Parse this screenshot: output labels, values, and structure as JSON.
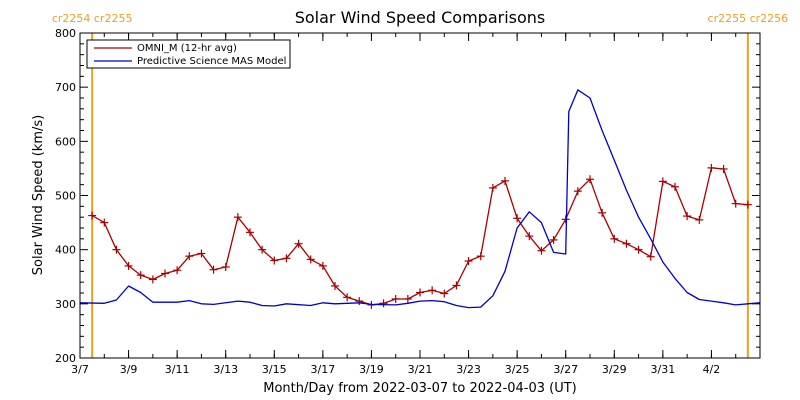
{
  "chart_data": {
    "type": "line",
    "title": "Solar Wind Speed Comparisons",
    "xlabel": "Month/Day from 2022-03-07 to 2022-04-03 (UT)",
    "ylabel": "Solar Wind Speed (km/s)",
    "xlim": [
      "2022-03-07",
      "2022-04-04"
    ],
    "ylim": [
      200,
      800
    ],
    "y_ticks": [
      200,
      300,
      400,
      500,
      600,
      700,
      800
    ],
    "x_ticks": [
      {
        "date": "2022-03-07",
        "label": "3/7"
      },
      {
        "date": "2022-03-09",
        "label": "3/9"
      },
      {
        "date": "2022-03-11",
        "label": "3/11"
      },
      {
        "date": "2022-03-13",
        "label": "3/13"
      },
      {
        "date": "2022-03-15",
        "label": "3/15"
      },
      {
        "date": "2022-03-17",
        "label": "3/17"
      },
      {
        "date": "2022-03-19",
        "label": "3/19"
      },
      {
        "date": "2022-03-21",
        "label": "3/21"
      },
      {
        "date": "2022-03-23",
        "label": "3/23"
      },
      {
        "date": "2022-03-25",
        "label": "3/25"
      },
      {
        "date": "2022-03-27",
        "label": "3/27"
      },
      {
        "date": "2022-03-29",
        "label": "3/29"
      },
      {
        "date": "2022-03-31",
        "label": "3/31"
      },
      {
        "date": "2022-04-02",
        "label": "4/2"
      }
    ],
    "legend_position": "top-left",
    "carrington_markers": [
      {
        "date": "2022-03-07 12:00",
        "label": "cr2254 cr2255",
        "side": "left"
      },
      {
        "date": "2022-04-03 12:00",
        "label": "cr2255 cr2256",
        "side": "right"
      }
    ],
    "series": [
      {
        "name": "OMNI_M (12-hr avg)",
        "color": "#aa0000",
        "marker": "plus",
        "points": [
          [
            "2022-03-07 12:00",
            463
          ],
          [
            "2022-03-08 00:00",
            450
          ],
          [
            "2022-03-08 12:00",
            400
          ],
          [
            "2022-03-09 00:00",
            370
          ],
          [
            "2022-03-09 12:00",
            353
          ],
          [
            "2022-03-10 00:00",
            345
          ],
          [
            "2022-03-10 12:00",
            356
          ],
          [
            "2022-03-11 00:00",
            362
          ],
          [
            "2022-03-11 12:00",
            388
          ],
          [
            "2022-03-12 00:00",
            393
          ],
          [
            "2022-03-12 12:00",
            363
          ],
          [
            "2022-03-13 00:00",
            368
          ],
          [
            "2022-03-13 12:00",
            460
          ],
          [
            "2022-03-14 00:00",
            432
          ],
          [
            "2022-03-14 12:00",
            400
          ],
          [
            "2022-03-15 00:00",
            380
          ],
          [
            "2022-03-15 12:00",
            384
          ],
          [
            "2022-03-16 00:00",
            411
          ],
          [
            "2022-03-16 12:00",
            382
          ],
          [
            "2022-03-17 00:00",
            370
          ],
          [
            "2022-03-17 12:00",
            333
          ],
          [
            "2022-03-18 00:00",
            312
          ],
          [
            "2022-03-18 12:00",
            305
          ],
          [
            "2022-03-19 00:00",
            298
          ],
          [
            "2022-03-19 12:00",
            301
          ],
          [
            "2022-03-20 00:00",
            309
          ],
          [
            "2022-03-20 12:00",
            309
          ],
          [
            "2022-03-21 00:00",
            321
          ],
          [
            "2022-03-21 12:00",
            325
          ],
          [
            "2022-03-22 00:00",
            319
          ],
          [
            "2022-03-22 12:00",
            334
          ],
          [
            "2022-03-23 00:00",
            379
          ],
          [
            "2022-03-23 12:00",
            388
          ],
          [
            "2022-03-24 00:00",
            514
          ],
          [
            "2022-03-24 12:00",
            527
          ],
          [
            "2022-03-25 00:00",
            458
          ],
          [
            "2022-03-25 12:00",
            425
          ],
          [
            "2022-03-26 00:00",
            398
          ],
          [
            "2022-03-26 12:00",
            418
          ],
          [
            "2022-03-27 00:00",
            456
          ],
          [
            "2022-03-27 12:00",
            508
          ],
          [
            "2022-03-28 00:00",
            530
          ],
          [
            "2022-03-28 12:00",
            468
          ],
          [
            "2022-03-29 00:00",
            420
          ],
          [
            "2022-03-29 12:00",
            411
          ],
          [
            "2022-03-30 00:00",
            400
          ],
          [
            "2022-03-30 12:00",
            387
          ],
          [
            "2022-03-31 00:00",
            526
          ],
          [
            "2022-03-31 12:00",
            516
          ],
          [
            "2022-04-01 00:00",
            462
          ],
          [
            "2022-04-01 12:00",
            455
          ],
          [
            "2022-04-02 00:00",
            551
          ],
          [
            "2022-04-02 12:00",
            549
          ],
          [
            "2022-04-03 00:00",
            485
          ],
          [
            "2022-04-03 12:00",
            483
          ]
        ]
      },
      {
        "name": "Predictive Science MAS Model",
        "color": "#0000cc",
        "marker": "none",
        "points": [
          [
            "2022-03-07 00:00",
            302
          ],
          [
            "2022-03-08 00:00",
            301
          ],
          [
            "2022-03-08 12:00",
            307
          ],
          [
            "2022-03-09 00:00",
            333
          ],
          [
            "2022-03-09 12:00",
            321
          ],
          [
            "2022-03-10 00:00",
            303
          ],
          [
            "2022-03-11 00:00",
            303
          ],
          [
            "2022-03-11 12:00",
            306
          ],
          [
            "2022-03-12 00:00",
            300
          ],
          [
            "2022-03-12 12:00",
            299
          ],
          [
            "2022-03-13 12:00",
            305
          ],
          [
            "2022-03-14 00:00",
            303
          ],
          [
            "2022-03-14 12:00",
            297
          ],
          [
            "2022-03-15 00:00",
            296
          ],
          [
            "2022-03-15 12:00",
            300
          ],
          [
            "2022-03-16 12:00",
            297
          ],
          [
            "2022-03-17 00:00",
            302
          ],
          [
            "2022-03-17 12:00",
            300
          ],
          [
            "2022-03-18 12:00",
            302
          ],
          [
            "2022-03-19 00:00",
            299
          ],
          [
            "2022-03-20 00:00",
            298
          ],
          [
            "2022-03-20 12:00",
            301
          ],
          [
            "2022-03-21 00:00",
            305
          ],
          [
            "2022-03-21 12:00",
            306
          ],
          [
            "2022-03-22 00:00",
            304
          ],
          [
            "2022-03-22 12:00",
            297
          ],
          [
            "2022-03-23 00:00",
            293
          ],
          [
            "2022-03-23 12:00",
            294
          ],
          [
            "2022-03-24 00:00",
            315
          ],
          [
            "2022-03-24 12:00",
            360
          ],
          [
            "2022-03-25 00:00",
            440
          ],
          [
            "2022-03-25 12:00",
            470
          ],
          [
            "2022-03-26 00:00",
            450
          ],
          [
            "2022-03-26 12:00",
            395
          ],
          [
            "2022-03-27 00:00",
            392
          ],
          [
            "2022-03-27 03:00",
            655
          ],
          [
            "2022-03-27 12:00",
            695
          ],
          [
            "2022-03-28 00:00",
            680
          ],
          [
            "2022-03-28 12:00",
            620
          ],
          [
            "2022-03-29 00:00",
            565
          ],
          [
            "2022-03-29 12:00",
            510
          ],
          [
            "2022-03-30 00:00",
            460
          ],
          [
            "2022-03-30 12:00",
            420
          ],
          [
            "2022-03-31 00:00",
            377
          ],
          [
            "2022-03-31 12:00",
            347
          ],
          [
            "2022-04-01 00:00",
            321
          ],
          [
            "2022-04-01 12:00",
            308
          ],
          [
            "2022-04-02 00:00",
            305
          ],
          [
            "2022-04-02 12:00",
            302
          ],
          [
            "2022-04-03 00:00",
            298
          ],
          [
            "2022-04-03 12:00",
            300
          ],
          [
            "2022-04-04 00:00",
            302
          ]
        ]
      }
    ]
  }
}
